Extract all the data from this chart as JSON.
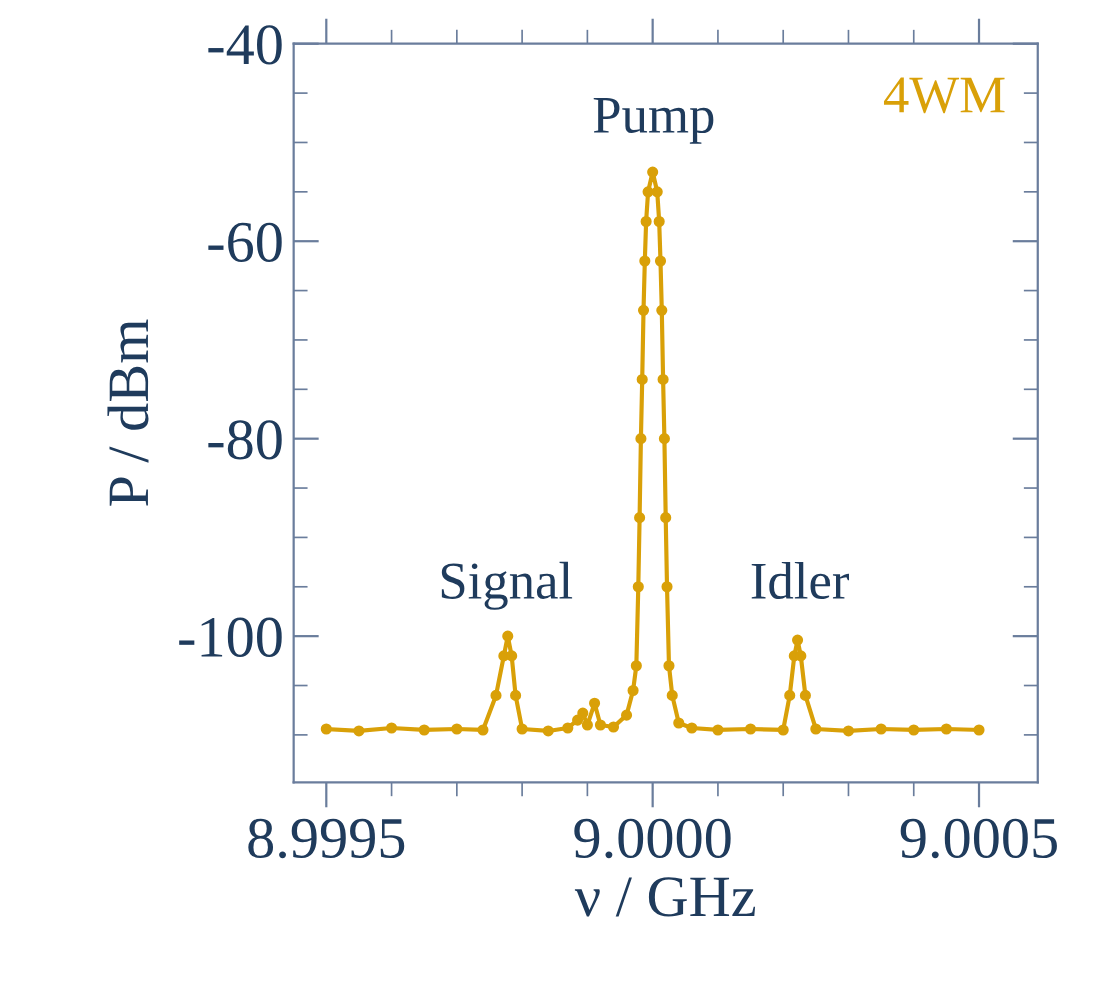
{
  "chart_data": {
    "type": "line",
    "xlabel": "ν / GHz",
    "ylabel": "P / dBm",
    "xlim": [
      8.99945,
      9.00059
    ],
    "ylim": [
      -114.8,
      -40
    ],
    "xticks": [
      8.9995,
      {
        "value": 9.0,
        "label": "9.0000"
      },
      9.0005
    ],
    "yticks": [
      -40,
      -60,
      -80,
      -100
    ],
    "grid": false,
    "legend": "top right",
    "marker": "circle",
    "line_style": "solid",
    "series": [
      {
        "name": "4WM",
        "color": "#d9a008",
        "x": [
          8.9995,
          8.99955,
          8.9996,
          8.99965,
          8.9997,
          8.99974,
          8.99976,
          8.999772,
          8.999778,
          8.999784,
          8.99979,
          8.9998,
          8.99984,
          8.99987,
          8.999885,
          8.999893,
          8.9999,
          8.999911,
          8.99992,
          8.99994,
          8.99996,
          8.99997,
          8.999975,
          8.999978,
          8.99998,
          8.999982,
          8.999984,
          8.999986,
          8.999988,
          8.99999,
          8.999993,
          9.0,
          9.000007,
          9.00001,
          9.000012,
          9.000014,
          9.000016,
          9.000018,
          9.00002,
          9.000022,
          9.000025,
          9.00003,
          9.00004,
          9.00006,
          9.0001,
          9.00015,
          9.0002,
          9.00021,
          9.000217,
          9.000222,
          9.000227,
          9.000234,
          9.00025,
          9.0003,
          9.00035,
          9.0004,
          9.00045,
          9.0005
        ],
        "values": [
          -109.4,
          -109.6,
          -109.3,
          -109.5,
          -109.4,
          -109.5,
          -106,
          -102,
          -100,
          -102,
          -106,
          -109.4,
          -109.6,
          -109.3,
          -108.5,
          -107.8,
          -109,
          -106.8,
          -109,
          -109.2,
          -108,
          -105.5,
          -103,
          -95,
          -88,
          -80,
          -74,
          -67,
          -62,
          -58,
          -55,
          -53,
          -55,
          -58,
          -62,
          -67,
          -74,
          -80,
          -88,
          -95,
          -103,
          -106,
          -108.8,
          -109.3,
          -109.5,
          -109.4,
          -109.5,
          -106,
          -102,
          -100.4,
          -102,
          -106,
          -109.4,
          -109.6,
          -109.4,
          -109.5,
          -109.4,
          -109.5
        ]
      }
    ],
    "annotations": [
      "Pump",
      "Signal",
      "Idler"
    ]
  }
}
